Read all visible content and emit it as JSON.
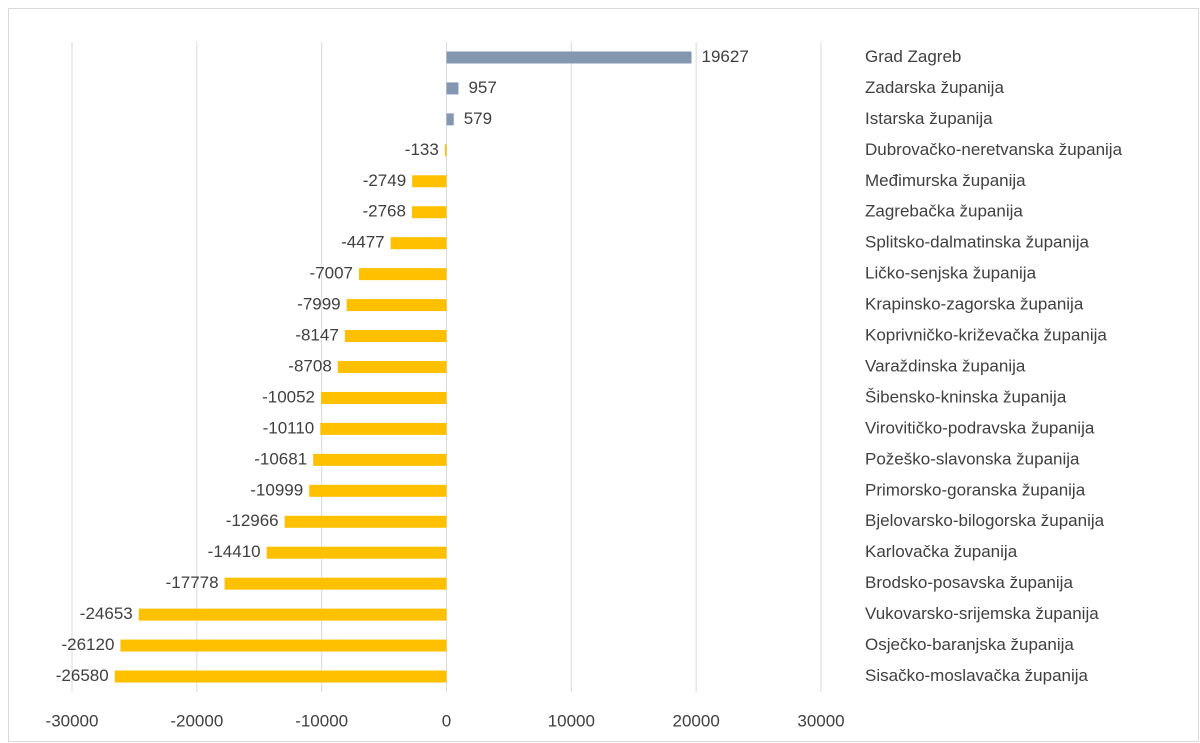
{
  "chart_data": {
    "type": "bar",
    "orientation": "horizontal",
    "categories": [
      "Grad Zagreb",
      "Zadarska županija",
      "Istarska županija",
      "Dubrovačko-neretvanska županija",
      "Međimurska županija",
      "Zagrebačka županija",
      "Splitsko-dalmatinska županija",
      "Ličko-senjska županija",
      "Krapinsko-zagorska županija",
      "Koprivničko-križevačka županija",
      "Varaždinska županija",
      "Šibensko-kninska županija",
      "Virovitičko-podravska županija",
      "Požeško-slavonska županija",
      "Primorsko-goranska županija",
      "Bjelovarsko-bilogorska županija",
      "Karlovačka županija",
      "Brodsko-posavska županija",
      "Vukovarsko-srijemska županija",
      "Osječko-baranjska županija",
      "Sisačko-moslavačka županija"
    ],
    "values": [
      19627,
      957,
      579,
      -133,
      -2749,
      -2768,
      -4477,
      -7007,
      -7999,
      -8147,
      -8708,
      -10052,
      -10110,
      -10681,
      -10999,
      -12966,
      -14410,
      -17778,
      -24653,
      -26120,
      -26580
    ],
    "positive_color": "#8497b0",
    "negative_color": "#ffc000",
    "xlim": [
      -30000,
      30000
    ],
    "xticks": [
      -30000,
      -20000,
      -10000,
      0,
      10000,
      20000,
      30000
    ],
    "grid": true
  }
}
